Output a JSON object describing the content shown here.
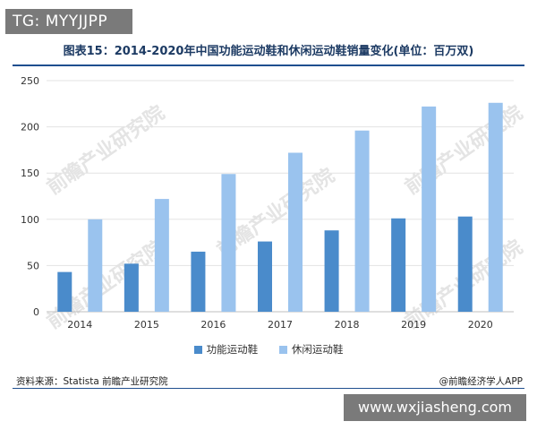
{
  "badge_top": "TG: MYYJJPP",
  "title": "图表15：2014-2020年中国功能运动鞋和休闲运动鞋销量变化(单位：百万双)",
  "source": "资料来源：Statista  前瞻产业研究院",
  "brand": "@前瞻经济学人APP",
  "badge_bottom": "www.wxjiasheng.com",
  "watermark": "前瞻产业研究院",
  "colors": {
    "functional": "#4a8bcb",
    "casual": "#9ac3ee",
    "rule": "#1f4f8f"
  },
  "chart_data": {
    "type": "bar",
    "title": "图表15：2014-2020年中国功能运动鞋和休闲运动鞋销量变化(单位：百万双)",
    "categories": [
      "2014",
      "2015",
      "2016",
      "2017",
      "2018",
      "2019",
      "2020"
    ],
    "series": [
      {
        "name": "功能运动鞋",
        "values": [
          43,
          52,
          65,
          76,
          88,
          101,
          103
        ]
      },
      {
        "name": "休闲运动鞋",
        "values": [
          100,
          122,
          149,
          172,
          196,
          222,
          226
        ]
      }
    ],
    "ylim": [
      0,
      250
    ],
    "yticks": [
      "0",
      "50",
      "100",
      "150",
      "200",
      "250"
    ],
    "grid": true,
    "legend_position": "bottom"
  }
}
